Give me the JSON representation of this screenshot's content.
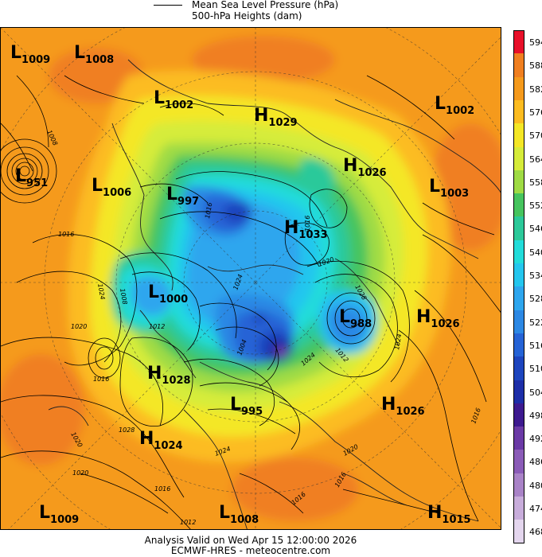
{
  "legend": {
    "mslp_label": "Mean Sea Level Pressure (hPa)",
    "height_label": "500-hPa Heights (dam)"
  },
  "colorbar": {
    "levels": [
      "594",
      "588",
      "582",
      "576",
      "570",
      "564",
      "558",
      "552",
      "546",
      "540",
      "534",
      "528",
      "522",
      "516",
      "510",
      "504",
      "498",
      "492",
      "486",
      "480",
      "474",
      "468"
    ],
    "colors": [
      "#e8102a",
      "#f07f20",
      "#f59a1c",
      "#fcbc20",
      "#f4e726",
      "#d6ec3a",
      "#9fdb44",
      "#46c45e",
      "#2cc99a",
      "#22dcda",
      "#24c6ee",
      "#2ea6ee",
      "#2c88e4",
      "#2563d6",
      "#1d45be",
      "#1d2ea8",
      "#3d1a8f",
      "#6b3aa6",
      "#8b5cb8",
      "#a983c7",
      "#c8addb",
      "#e4d6ee"
    ]
  },
  "pressure_centres": [
    {
      "type": "L",
      "value": "1009"
    },
    {
      "type": "L",
      "value": "1008"
    },
    {
      "type": "L",
      "value": "1002"
    },
    {
      "type": "H",
      "value": "1029"
    },
    {
      "type": "L",
      "value": "1002"
    },
    {
      "type": "L",
      "value": "951"
    },
    {
      "type": "L",
      "value": "1006"
    },
    {
      "type": "L",
      "value": "997"
    },
    {
      "type": "H",
      "value": "1026"
    },
    {
      "type": "L",
      "value": "1003"
    },
    {
      "type": "H",
      "value": "1033"
    },
    {
      "type": "L",
      "value": "1000"
    },
    {
      "type": "L",
      "value": "988"
    },
    {
      "type": "H",
      "value": "1026"
    },
    {
      "type": "H",
      "value": "1028"
    },
    {
      "type": "L",
      "value": "995"
    },
    {
      "type": "H",
      "value": "1026"
    },
    {
      "type": "H",
      "value": "1024"
    },
    {
      "type": "L",
      "value": "1009"
    },
    {
      "type": "L",
      "value": "1008"
    },
    {
      "type": "H",
      "value": "1015"
    }
  ],
  "contour_labels": [
    "1008",
    "1016",
    "1024",
    "1020",
    "1016",
    "1012",
    "1008",
    "1020",
    "1016",
    "1016",
    "1024",
    "1028",
    "1020",
    "1024",
    "1016",
    "1012",
    "1016",
    "1020",
    "1016",
    "1012",
    "1016",
    "1020",
    "1004",
    "1024",
    "1028",
    "1024"
  ],
  "footer": {
    "analysis": "Analysis Valid on Wed Apr 15 12:00:00 2026",
    "source": "ECMWF-HRES  - meteocentre.com"
  }
}
